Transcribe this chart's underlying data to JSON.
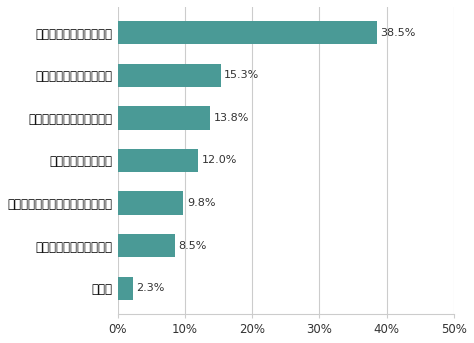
{
  "categories": [
    "その他",
    "職種間で常識の違うこと",
    "海外の人とのコミュニケーション",
    "新しい言葉の使い方",
    "世代間で常識が異なること",
    "業界間で常識の違うこと",
    "目上の人との食事や接待"
  ],
  "values": [
    2.3,
    8.5,
    9.8,
    12.0,
    13.8,
    15.3,
    38.5
  ],
  "bar_color": "#4a9a96",
  "label_color": "#333333",
  "background_color": "#ffffff",
  "grid_color": "#cccccc",
  "xlim": [
    0,
    50
  ],
  "xticks": [
    0,
    10,
    20,
    30,
    40,
    50
  ],
  "xtick_labels": [
    "0%",
    "10%",
    "20%",
    "30%",
    "40%",
    "50%"
  ],
  "bar_height": 0.55,
  "fontsize_labels": 8.5,
  "fontsize_values": 8.0,
  "fontsize_ticks": 8.5
}
